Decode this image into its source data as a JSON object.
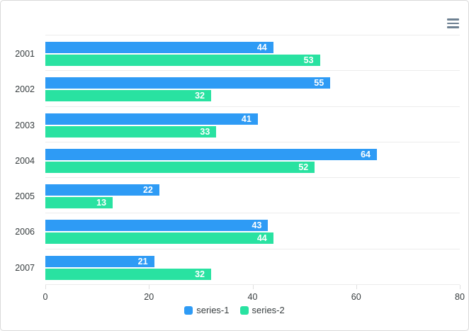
{
  "card": {
    "background": "#ffffff",
    "border_color": "#d9d9d9"
  },
  "toolbar": {
    "menu_icon": "hamburger-menu",
    "menu_icon_color": "#6E8192"
  },
  "chart_data": {
    "type": "bar",
    "orientation": "horizontal",
    "title": "",
    "categories": [
      "2001",
      "2002",
      "2003",
      "2004",
      "2005",
      "2006",
      "2007"
    ],
    "series": [
      {
        "name": "series-1",
        "color": "#2E9BF5",
        "values": [
          44,
          55,
          41,
          64,
          22,
          43,
          21
        ]
      },
      {
        "name": "series-2",
        "color": "#29E2A1",
        "values": [
          53,
          32,
          33,
          52,
          13,
          44,
          32
        ]
      }
    ],
    "xlim": [
      0,
      80
    ],
    "xticks": [
      0,
      20,
      40,
      60,
      80
    ],
    "grid": "horizontal-only",
    "grid_color": "#ececec",
    "axis_label_color": "#373d3f",
    "data_labels": "inside-end-white-bold",
    "legend_position": "bottom"
  }
}
